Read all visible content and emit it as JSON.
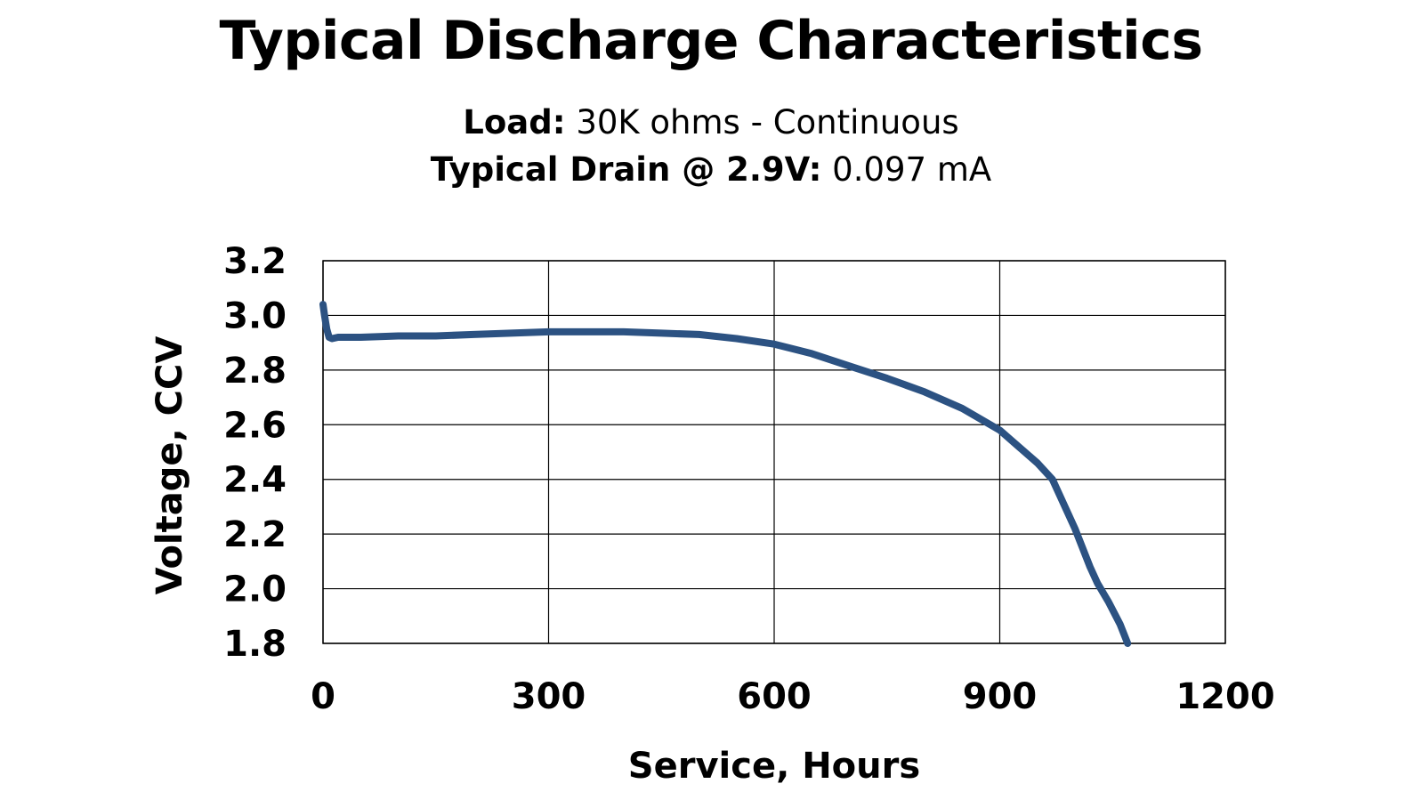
{
  "title": "Typical Discharge Characteristics",
  "subtitle": {
    "load_label": "Load:",
    "load_value": "30K ohms - Continuous",
    "drain_label": "Typical Drain @ 2.9V:",
    "drain_value": "0.097 mA"
  },
  "chart_data": {
    "type": "line",
    "xlabel": "Service, Hours",
    "ylabel": "Voltage, CCV",
    "xlim": [
      0,
      1200
    ],
    "ylim": [
      1.8,
      3.2
    ],
    "xticks": [
      "0",
      "300",
      "600",
      "900",
      "1200"
    ],
    "yticks": [
      "3.2",
      "3.0",
      "2.8",
      "2.6",
      "2.4",
      "2.2",
      "2.0",
      "1.8"
    ],
    "grid": true,
    "line_color": "#2c5282",
    "series": [
      {
        "x": [
          0,
          2,
          5,
          8,
          12,
          20,
          50,
          100,
          150,
          200,
          250,
          300,
          350,
          400,
          450,
          500,
          550,
          600,
          650,
          700,
          750,
          800,
          850,
          900,
          950,
          970,
          1000,
          1020,
          1030,
          1045,
          1060,
          1070
        ],
        "y": [
          3.04,
          3.0,
          2.95,
          2.92,
          2.915,
          2.92,
          2.92,
          2.925,
          2.925,
          2.93,
          2.935,
          2.94,
          2.94,
          2.94,
          2.935,
          2.93,
          2.915,
          2.895,
          2.86,
          2.815,
          2.77,
          2.72,
          2.66,
          2.58,
          2.46,
          2.4,
          2.22,
          2.08,
          2.02,
          1.95,
          1.87,
          1.8
        ]
      }
    ]
  }
}
